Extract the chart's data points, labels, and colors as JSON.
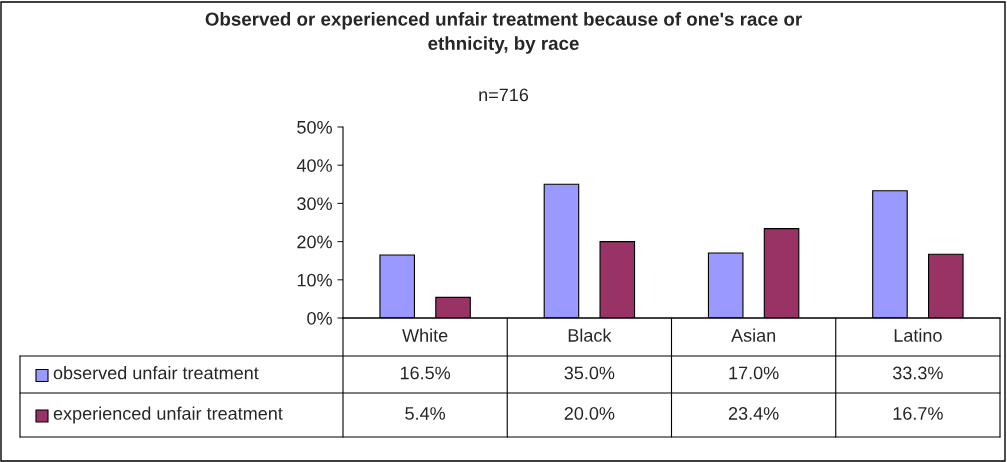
{
  "chart_data": {
    "type": "bar",
    "title": "Observed or experienced unfair treatment because of one's race or\nethnicity, by race",
    "subtitle": "n=716",
    "categories": [
      "White",
      "Black",
      "Asian",
      "Latino"
    ],
    "series": [
      {
        "name": "observed unfair treatment",
        "color": "#9999ff",
        "values": [
          16.5,
          35.0,
          17.0,
          33.3
        ],
        "value_labels": [
          "16.5%",
          "35.0%",
          "17.0%",
          "33.3%"
        ]
      },
      {
        "name": "experienced unfair treatment",
        "color": "#993366",
        "values": [
          5.4,
          20.0,
          23.4,
          16.7
        ],
        "value_labels": [
          "5.4%",
          "20.0%",
          "23.4%",
          "16.7%"
        ]
      }
    ],
    "ylim": [
      0,
      50
    ],
    "yticks": [
      {
        "value": 0,
        "label": "0%"
      },
      {
        "value": 10,
        "label": "10%"
      },
      {
        "value": 20,
        "label": "20%"
      },
      {
        "value": 30,
        "label": "30%"
      },
      {
        "value": 40,
        "label": "40%"
      },
      {
        "value": 50,
        "label": "50%"
      }
    ],
    "grid": false,
    "legend": "bottom"
  }
}
